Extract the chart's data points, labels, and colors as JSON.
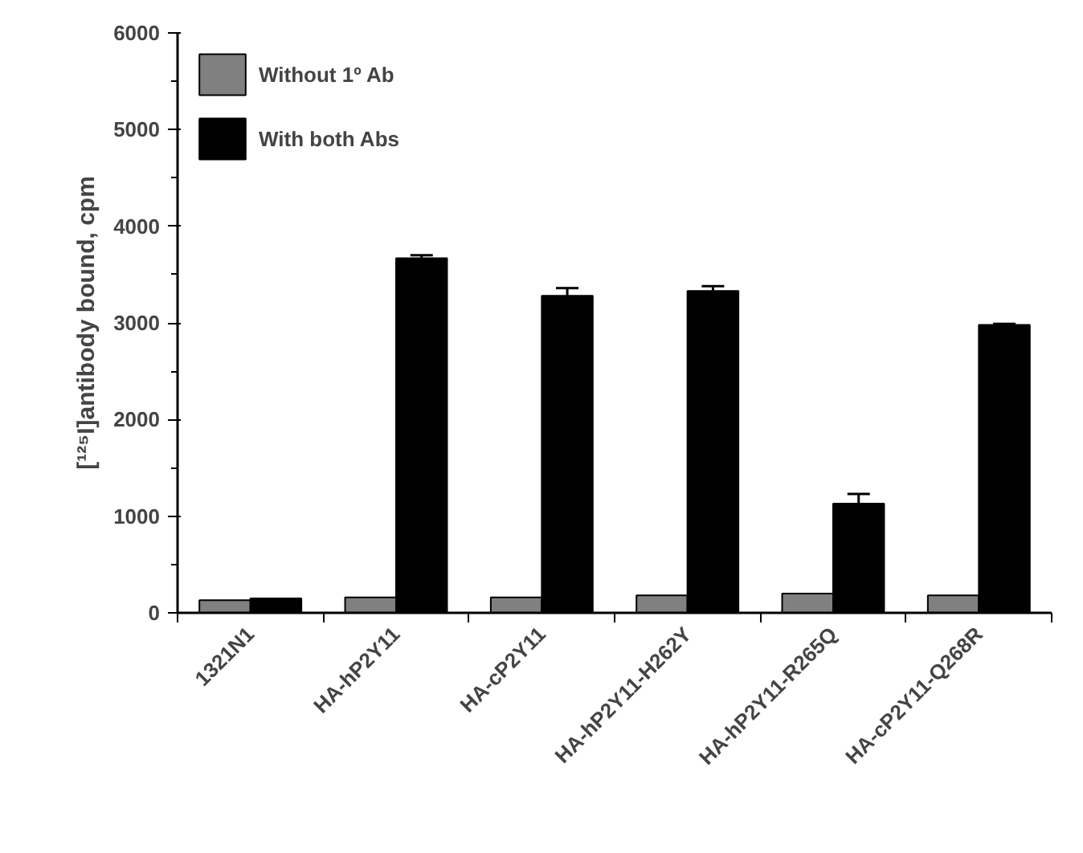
{
  "chart_data": {
    "type": "bar",
    "ylabel": "[¹²⁵I]antibody bound, cpm",
    "categories": [
      "1321N1",
      "HA-hP2Y11",
      "HA-cP2Y11",
      "HA-hP2Y11-H262Y",
      "HA-hP2Y11-R265Q",
      "HA-cP2Y11-Q268R"
    ],
    "series": [
      {
        "name": "Without 1º Ab",
        "color": "#808080",
        "values": [
          130,
          160,
          160,
          180,
          200,
          180
        ]
      },
      {
        "name": "With both Abs",
        "color": "#000000",
        "values": [
          150,
          3670,
          3280,
          3330,
          1130,
          2980
        ],
        "errors": [
          null,
          30,
          80,
          50,
          100,
          10
        ]
      }
    ],
    "ylim": [
      0,
      6000
    ],
    "yticks": [
      0,
      1000,
      2000,
      3000,
      4000,
      5000,
      6000
    ],
    "grid": false,
    "legend": "top left"
  }
}
